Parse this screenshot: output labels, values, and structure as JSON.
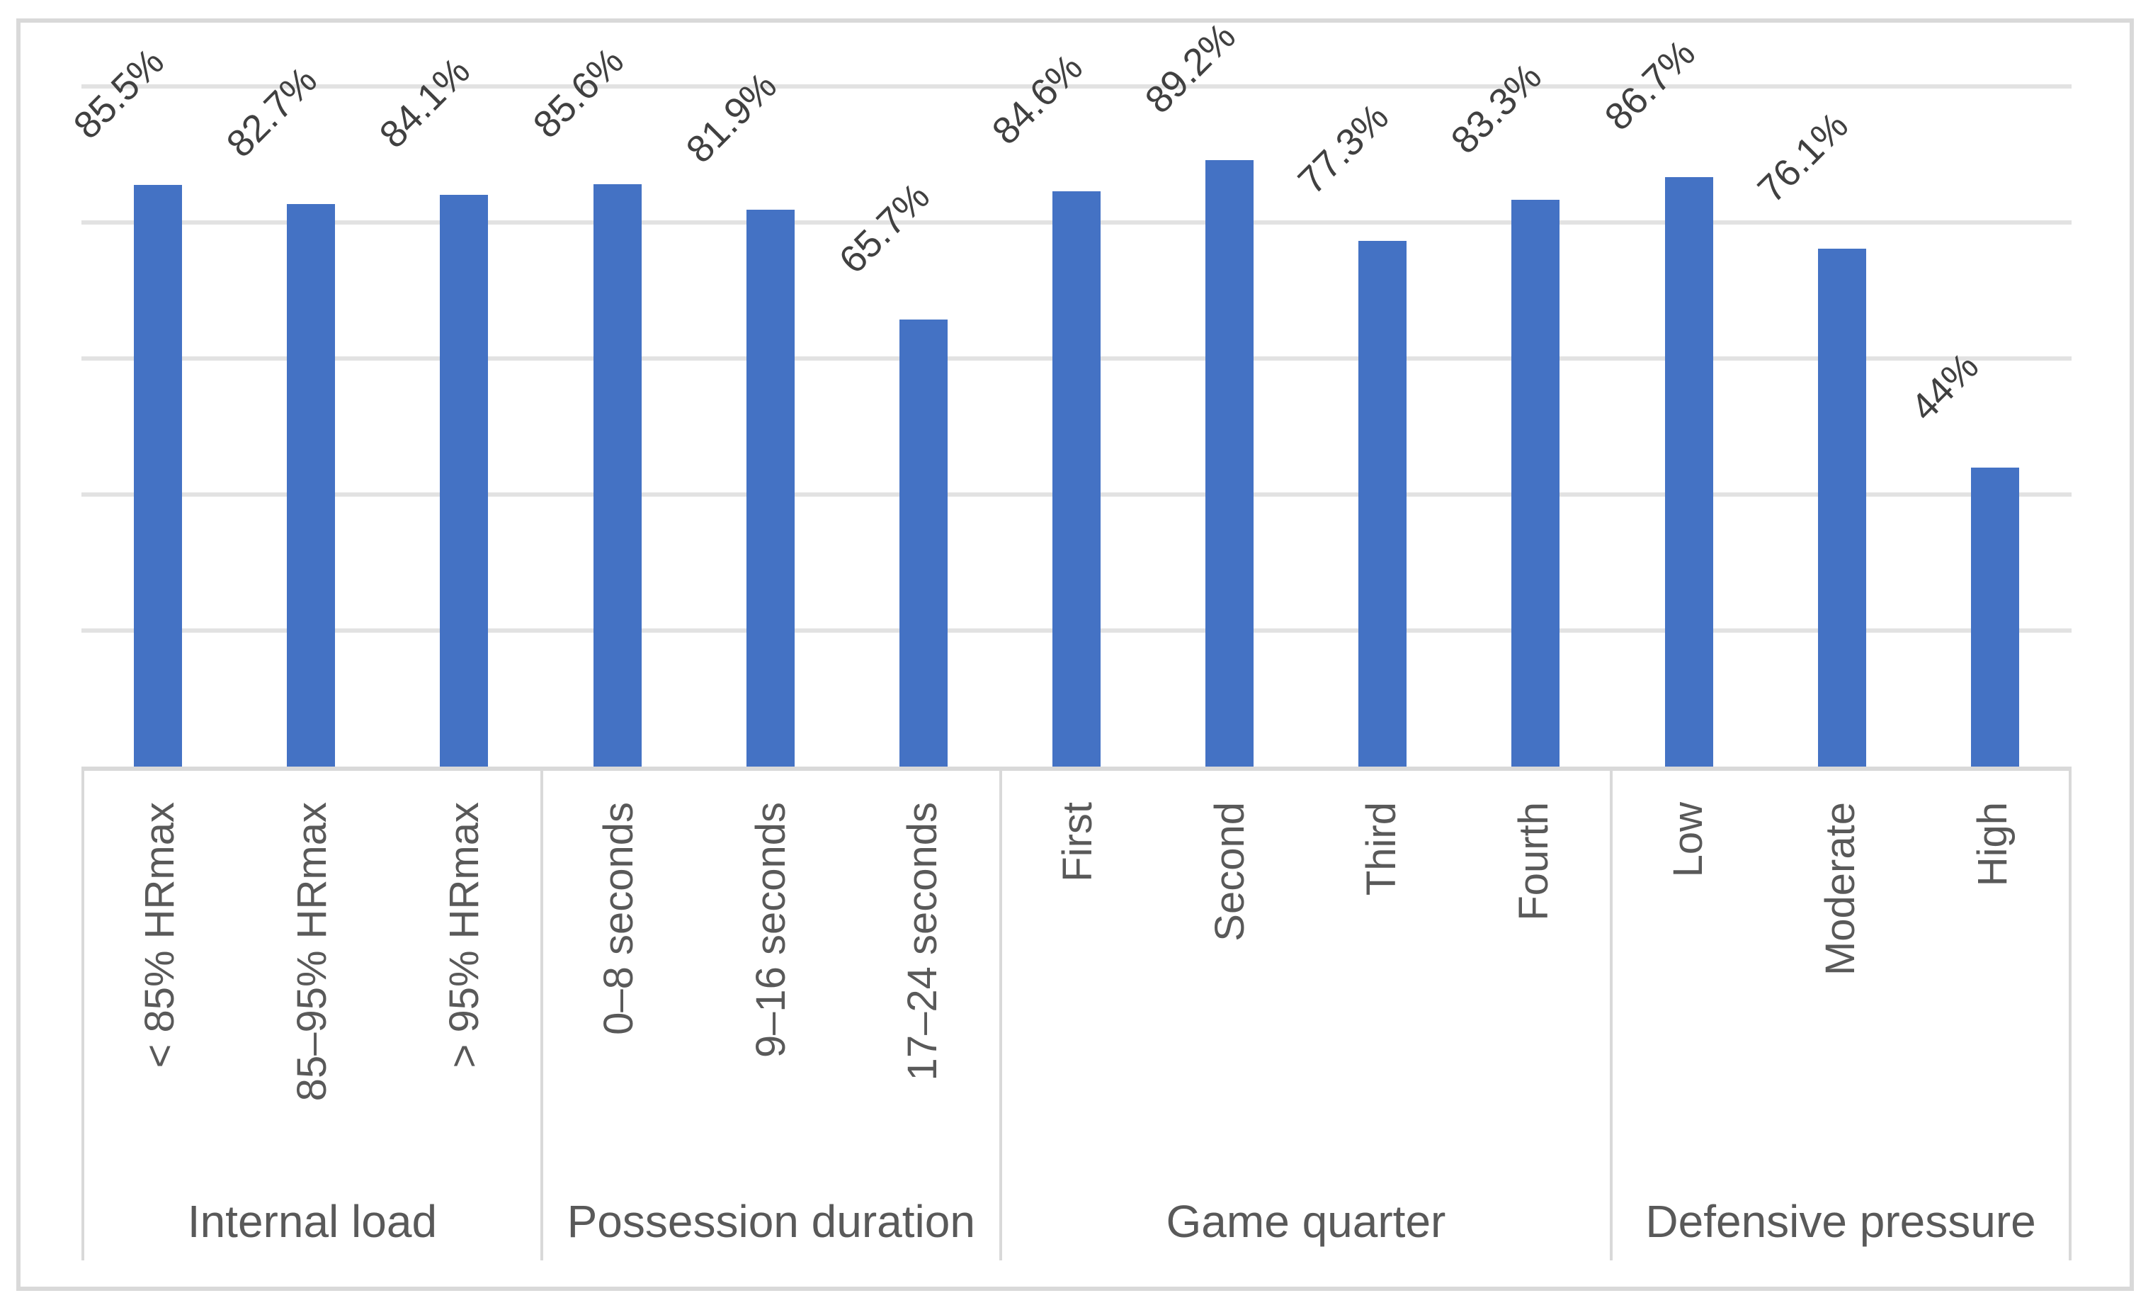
{
  "chart_data": {
    "type": "bar",
    "title": "",
    "xlabel": "",
    "ylabel": "",
    "unit": "%",
    "ylim": [
      0,
      100
    ],
    "gridlines_pct": [
      20,
      40,
      60,
      80,
      100
    ],
    "grid_on": true,
    "legend_position": "none",
    "axis_tick_labels_visible": false,
    "categories": [
      "< 85% HRmax",
      "85–95% HRmax",
      "> 95% HRmax",
      "0–8 seconds",
      "9–16 seconds",
      "17–24 seconds",
      "First",
      "Second",
      "Third",
      "Fourth",
      "Low",
      "Moderate",
      "High"
    ],
    "values": [
      85.5,
      82.7,
      84.1,
      85.6,
      81.9,
      65.7,
      84.6,
      89.2,
      77.3,
      83.3,
      86.7,
      76.1,
      44
    ],
    "groups": [
      {
        "label": "Internal load",
        "items": [
          {
            "category": "< 85% HRmax",
            "value": 85.5,
            "value_label": "85.5%"
          },
          {
            "category": "85–95% HRmax",
            "value": 82.7,
            "value_label": "82.7%"
          },
          {
            "category": "> 95% HRmax",
            "value": 84.1,
            "value_label": "84.1%"
          }
        ]
      },
      {
        "label": "Possession duration",
        "items": [
          {
            "category": "0–8 seconds",
            "value": 85.6,
            "value_label": "85.6%"
          },
          {
            "category": "9–16 seconds",
            "value": 81.9,
            "value_label": "81.9%"
          },
          {
            "category": "17–24 seconds",
            "value": 65.7,
            "value_label": "65.7%"
          }
        ]
      },
      {
        "label": "Game quarter",
        "items": [
          {
            "category": "First",
            "value": 84.6,
            "value_label": "84.6%"
          },
          {
            "category": "Second",
            "value": 89.2,
            "value_label": "89.2%"
          },
          {
            "category": "Third",
            "value": 77.3,
            "value_label": "77.3%"
          },
          {
            "category": "Fourth",
            "value": 83.3,
            "value_label": "83.3%"
          }
        ]
      },
      {
        "label": "Defensive pressure",
        "items": [
          {
            "category": "Low",
            "value": 86.7,
            "value_label": "86.7%"
          },
          {
            "category": "Moderate",
            "value": 76.1,
            "value_label": "76.1%"
          },
          {
            "category": "High",
            "value": 44,
            "value_label": "44%"
          }
        ]
      }
    ],
    "colors": {
      "bar": "#4472C4",
      "gridline": "#E2E2E2",
      "border": "#D9D9D9",
      "axis_text": "#595959",
      "data_label_text": "#404040"
    }
  }
}
